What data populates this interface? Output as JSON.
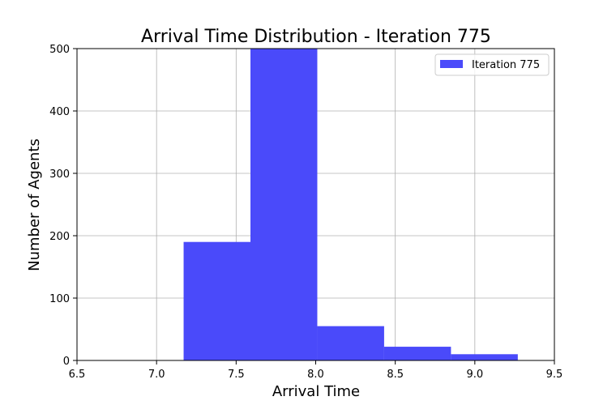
{
  "chart_data": {
    "type": "bar",
    "title": "Arrival Time Distribution - Iteration 775",
    "xlabel": "Arrival Time",
    "ylabel": "Number of Agents",
    "xlim": [
      6.5,
      9.5
    ],
    "ylim": [
      0,
      500
    ],
    "xticks": [
      "6.5",
      "7.0",
      "7.5",
      "8.0",
      "8.5",
      "9.0",
      "9.5"
    ],
    "yticks": [
      "0",
      "100",
      "200",
      "300",
      "400",
      "500"
    ],
    "grid": true,
    "legend_position": "top-right",
    "series": [
      {
        "name": "Iteration 775",
        "color": "#4a4afa",
        "bins": [
          {
            "x0": 7.17,
            "x1": 7.59,
            "value": 190
          },
          {
            "x0": 7.59,
            "x1": 8.01,
            "value": 500
          },
          {
            "x0": 8.01,
            "x1": 8.43,
            "value": 55
          },
          {
            "x0": 8.43,
            "x1": 8.85,
            "value": 22
          },
          {
            "x0": 8.85,
            "x1": 9.27,
            "value": 10
          }
        ]
      }
    ]
  }
}
